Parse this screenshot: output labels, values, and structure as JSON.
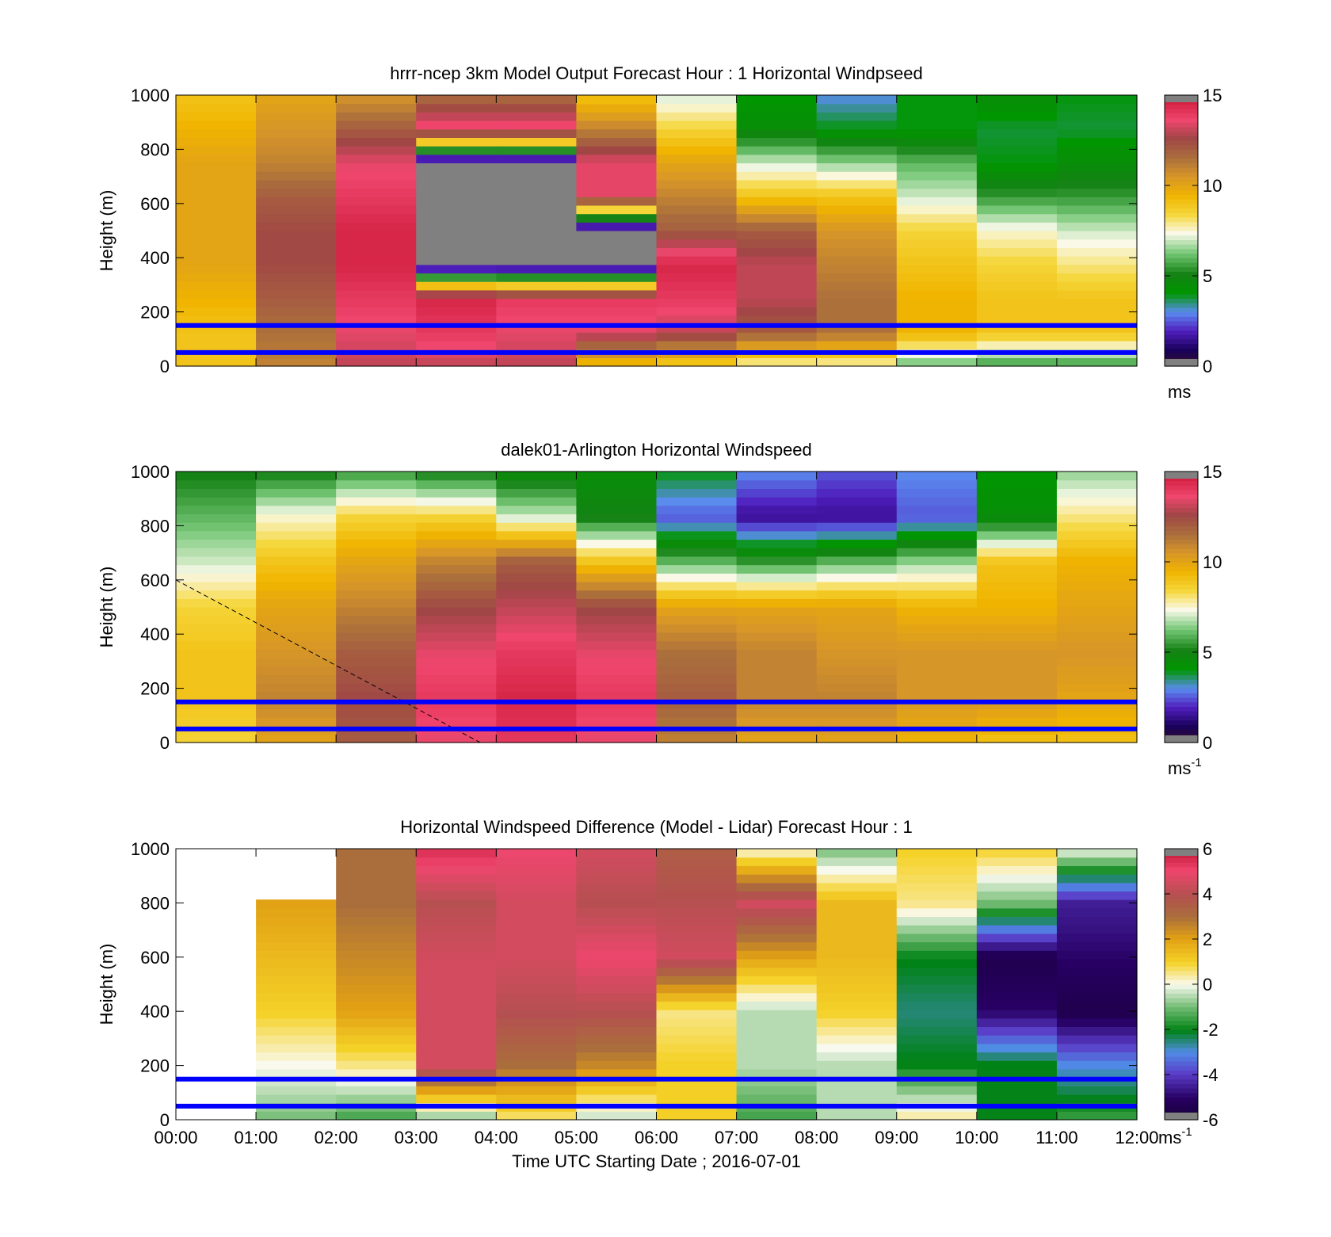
{
  "chart_data": [
    {
      "type": "heatmap",
      "title": "hrrr-ncep 3km Model Output   Forecast Hour : 1 Horizontal Windpseed",
      "ylabel": "Height (m)",
      "xlabel": "",
      "xlim": [
        0,
        12
      ],
      "ylim": [
        0,
        1000
      ],
      "yticks": [
        "0",
        "200",
        "400",
        "600",
        "800",
        "1000"
      ],
      "xticks": [
        "",
        "",
        "",
        "",
        "",
        "",
        "",
        "",
        "",
        "",
        "",
        "",
        ""
      ],
      "colorbar": {
        "min": 0,
        "max": 15,
        "ticks": [
          "0",
          "5",
          "10",
          "15"
        ],
        "unit_label": "ms",
        "unit_exp": ""
      },
      "reference_lines_m": [
        150,
        50
      ],
      "column_profiles_ms": [
        [
          9,
          9,
          9.5,
          10,
          10,
          10,
          10,
          9.5,
          9
        ],
        [
          11,
          11.5,
          12,
          12.5,
          12.5,
          12,
          11,
          10.5,
          10
        ],
        [
          13,
          13.5,
          14,
          14.5,
          14.5,
          14,
          13.5,
          12,
          10.5
        ],
        [
          13,
          14,
          14.5,
          0.1,
          0.1,
          0.1,
          0.1,
          14,
          11.5
        ],
        [
          13,
          13.5,
          14,
          0.1,
          0.1,
          0.1,
          0.1,
          14,
          11.5
        ],
        [
          9,
          13.5,
          14,
          0.1,
          0.1,
          13.5,
          13.5,
          11,
          9
        ],
        [
          8.5,
          13,
          14,
          14.5,
          12,
          11,
          10,
          8.5,
          7
        ],
        [
          7.5,
          12,
          13,
          13,
          12,
          9,
          7,
          4.5,
          4
        ],
        [
          7.5,
          11.5,
          11.5,
          11,
          10.5,
          9,
          6.5,
          4,
          3
        ],
        [
          6,
          9.5,
          9.5,
          9,
          8.5,
          7,
          6,
          4,
          4
        ],
        [
          5.5,
          9,
          9,
          8.5,
          7.5,
          5.5,
          4,
          3.8,
          4.5
        ],
        [
          5.5,
          9,
          9,
          8,
          7,
          5.5,
          4.5,
          3.8,
          4
        ]
      ]
    },
    {
      "type": "heatmap",
      "title": "dalek01-Arlington  Horizontal Windspeed",
      "ylabel": "Height (m)",
      "xlabel": "",
      "xlim": [
        0,
        12
      ],
      "ylim": [
        0,
        1000
      ],
      "yticks": [
        "0",
        "200",
        "400",
        "600",
        "800",
        "1000"
      ],
      "xticks": [
        "",
        "",
        "",
        "",
        "",
        "",
        "",
        "",
        "",
        "",
        "",
        "",
        ""
      ],
      "colorbar": {
        "min": 0,
        "max": 15,
        "ticks": [
          "0",
          "5",
          "10",
          "15"
        ],
        "unit_label": "ms",
        "unit_exp": "-1"
      },
      "reference_lines_m": [
        150,
        50
      ],
      "column_profiles_ms": [
        [
          8.5,
          9,
          9,
          8.5,
          7,
          6,
          5
        ],
        [
          10,
          11,
          10.5,
          10,
          9,
          7.5,
          5
        ],
        [
          12,
          12.5,
          12,
          11,
          10,
          8.5,
          5.5
        ],
        [
          13.5,
          14,
          13.5,
          12.5,
          11,
          8.5,
          5
        ],
        [
          14,
          14.5,
          14,
          13,
          12,
          7,
          4.5
        ],
        [
          13.5,
          14,
          13.5,
          12.5,
          9,
          5,
          4.5
        ],
        [
          11,
          12,
          11.5,
          10,
          6,
          2.5,
          4
        ],
        [
          10,
          11,
          11,
          10,
          5.5,
          1.5,
          3
        ],
        [
          10,
          11,
          10.5,
          10,
          6,
          1.5,
          2.5
        ],
        [
          9.5,
          10.5,
          10.5,
          9.5,
          6.5,
          2.5,
          3
        ],
        [
          9,
          10.5,
          10.5,
          9.5,
          9,
          4.5,
          4
        ],
        [
          9,
          10,
          10.5,
          10,
          9.5,
          8,
          6.5
        ]
      ],
      "dashed_line": {
        "from": [
          0,
          600
        ],
        "to": [
          3.8,
          0
        ]
      }
    },
    {
      "type": "heatmap",
      "title": "Horizontal Windspeed Difference (Model - Lidar) Forecast Hour : 1",
      "ylabel": "Height (m)",
      "xlabel": "Time UTC  Starting Date ; 2016-07-01",
      "xlim": [
        0,
        12
      ],
      "ylim": [
        0,
        1000
      ],
      "yticks": [
        "0",
        "200",
        "400",
        "600",
        "800",
        "1000"
      ],
      "xticks": [
        "00:00",
        "01:00",
        "02:00",
        "03:00",
        "04:00",
        "05:00",
        "06:00",
        "07:00",
        "08:00",
        "09:00",
        "10:00",
        "11:00",
        "12:00"
      ],
      "colorbar": {
        "min": -6,
        "max": 6,
        "ticks": [
          "-6",
          "-4",
          "-2",
          "0",
          "2",
          "4",
          "6"
        ],
        "unit_label": "ms",
        "unit_exp": "-1"
      },
      "reference_lines_m": [
        150,
        50
      ],
      "column_profiles_ms": [
        [],
        [
          -1,
          0,
          1,
          1.5,
          2,
          2.5
        ],
        [
          -1.5,
          0.5,
          2,
          2.5,
          3,
          3
        ],
        [
          -1,
          4.5,
          4.5,
          4.5,
          4,
          5.5
        ],
        [
          0.5,
          3,
          4,
          4.5,
          4.5,
          5
        ],
        [
          -0.5,
          2.5,
          4,
          5,
          4,
          4.5
        ],
        [
          1,
          1,
          0.5,
          4.5,
          4,
          3.5
        ],
        [
          -1.5,
          -0.5,
          -0.5,
          2,
          4.5,
          0
        ],
        [
          -0.5,
          -0.5,
          1,
          1.5,
          1.5,
          -1
        ],
        [
          0.5,
          -2,
          -2.5,
          -2,
          0.5,
          1
        ],
        [
          -2,
          -2,
          -5,
          -5.5,
          -1,
          1
        ],
        [
          -1.5,
          -3,
          -5.5,
          -5,
          -4.5,
          0
        ]
      ]
    }
  ]
}
